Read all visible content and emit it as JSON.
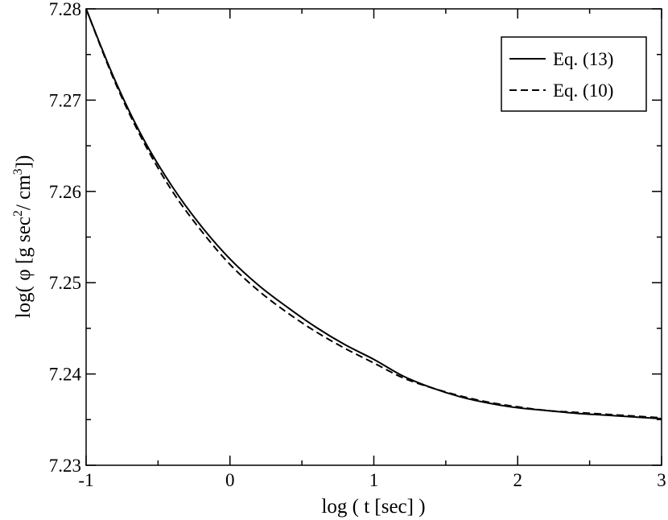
{
  "chart_data": {
    "type": "line",
    "title": "",
    "xlabel": "log ( t [sec] )",
    "ylabel": {
      "prefix": "log( ",
      "phi": "φ",
      "mid1": "  [g sec",
      "sup1": "2",
      "mid2": "/ cm",
      "sup2": "3",
      "suffix": "])"
    },
    "xlim": [
      -1,
      3
    ],
    "ylim": [
      7.23,
      7.28
    ],
    "x_ticks": [
      -1,
      0,
      1,
      2,
      3
    ],
    "y_ticks": [
      7.23,
      7.24,
      7.25,
      7.26,
      7.27,
      7.28
    ],
    "x_tick_labels": [
      "-1",
      "0",
      "1",
      "2",
      "3"
    ],
    "y_tick_labels": [
      "7.23",
      "7.24",
      "7.25",
      "7.26",
      "7.27",
      "7.28"
    ],
    "grid": false,
    "legend_position": "top-right",
    "series": [
      {
        "name": "Eq. (13)",
        "style": "solid",
        "x": [
          -1,
          -0.8,
          -0.6,
          -0.4,
          -0.2,
          0,
          0.2,
          0.4,
          0.6,
          0.8,
          1,
          1.2,
          1.4,
          1.6,
          1.8,
          2,
          2.2,
          2.4,
          2.6,
          2.8,
          3
        ],
        "y": [
          7.28,
          7.2722,
          7.2657,
          7.2605,
          7.2562,
          7.2526,
          7.2497,
          7.2473,
          7.2451,
          7.2432,
          7.2416,
          7.2398,
          7.2385,
          7.2375,
          7.2368,
          7.2363,
          7.236,
          7.2357,
          7.2355,
          7.2353,
          7.2351
        ]
      },
      {
        "name": "Eq. (10)",
        "style": "dashed",
        "x": [
          -1,
          -0.8,
          -0.6,
          -0.4,
          -0.2,
          0,
          0.2,
          0.4,
          0.6,
          0.8,
          1,
          1.2,
          1.4,
          1.6,
          1.8,
          2,
          2.2,
          2.4,
          2.6,
          2.8,
          3
        ],
        "y": [
          7.28,
          7.272,
          7.2654,
          7.26,
          7.2557,
          7.252,
          7.2491,
          7.2467,
          7.2446,
          7.2428,
          7.2412,
          7.2396,
          7.2385,
          7.2376,
          7.2369,
          7.2364,
          7.236,
          7.2358,
          7.2356,
          7.2354,
          7.2352
        ]
      }
    ]
  }
}
